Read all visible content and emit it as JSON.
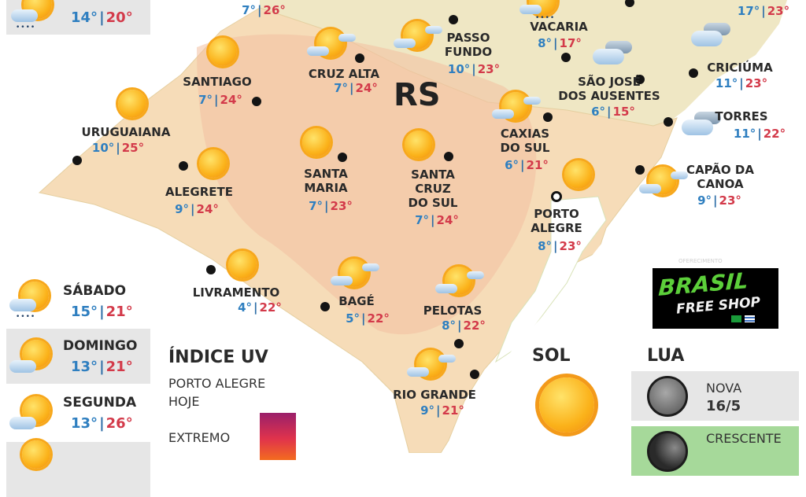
{
  "map": {
    "state_label": "RS",
    "colors": {
      "land": "#f6dcb8",
      "hot": "#f3c0a0",
      "warm": "#f8e3b0",
      "neighbor": "#efe7c4",
      "min_temp": "#2f7fc0",
      "max_temp": "#d33a4a"
    },
    "cities": [
      {
        "name": [
          "",
          ""
        ],
        "min": "7°",
        "max": "26°",
        "icon": "none"
      },
      {
        "name": [
          "SANTIAGO",
          ""
        ],
        "min": "7°",
        "max": "24°",
        "icon": "sun-icon"
      },
      {
        "name": [
          "CRUZ ALTA",
          ""
        ],
        "min": "7°",
        "max": "24°",
        "icon": "partly-cloudy-icon"
      },
      {
        "name": [
          "URUGUAIANA",
          ""
        ],
        "min": "10°",
        "max": "25°",
        "icon": "sun-icon"
      },
      {
        "name": [
          "ALEGRETE",
          ""
        ],
        "min": "9°",
        "max": "24°",
        "icon": "sun-icon"
      },
      {
        "name": [
          "SANTA",
          "MARIA"
        ],
        "min": "7°",
        "max": "23°",
        "icon": "sun-icon"
      },
      {
        "name": [
          "SANTA",
          "CRUZ",
          "DO SUL"
        ],
        "min": "7°",
        "max": "24°",
        "icon": "sun-icon"
      },
      {
        "name": [
          "PASSO",
          "FUNDO"
        ],
        "min": "10°",
        "max": "23°",
        "icon": "partly-cloudy-icon"
      },
      {
        "name": [
          "VACARIA",
          ""
        ],
        "min": "8°",
        "max": "17°",
        "icon": "rain-icon"
      },
      {
        "name": [
          "SÃO JOSÉ",
          "DOS AUSENTES"
        ],
        "min": "6°",
        "max": "15°",
        "icon": "cloudy-icon"
      },
      {
        "name": [
          "CAXIAS",
          "DO SUL"
        ],
        "min": "6°",
        "max": "21°",
        "icon": "partly-cloudy-icon"
      },
      {
        "name": [
          "",
          ""
        ],
        "min": "17°",
        "max": "23°",
        "icon": "none"
      },
      {
        "name": [
          "CRICIÚMA",
          ""
        ],
        "min": "11°",
        "max": "23°",
        "icon": "cloudy-icon"
      },
      {
        "name": [
          "TORRES",
          ""
        ],
        "min": "11°",
        "max": "22°",
        "icon": "cloudy-icon"
      },
      {
        "name": [
          "CAPÃO DA",
          "CANOA"
        ],
        "min": "9°",
        "max": "23°",
        "icon": "partly-cloudy-icon"
      },
      {
        "name": [
          "PORTO",
          "ALEGRE"
        ],
        "min": "8°",
        "max": "23°",
        "icon": "sun-icon"
      },
      {
        "name": [
          "LIVRAMENTO",
          ""
        ],
        "min": "4°",
        "max": "22°",
        "icon": "sun-icon"
      },
      {
        "name": [
          "BAGÉ",
          ""
        ],
        "min": "5°",
        "max": "22°",
        "icon": "partly-cloudy-icon"
      },
      {
        "name": [
          "PELOTAS",
          ""
        ],
        "min": "8°",
        "max": "22°",
        "icon": "partly-cloudy-icon"
      },
      {
        "name": [
          "RIO GRANDE",
          ""
        ],
        "min": "9°",
        "max": "21°",
        "icon": "partly-cloudy-icon"
      }
    ]
  },
  "forecast": [
    {
      "min": "14°",
      "max": "20°",
      "icon": "rain-icon"
    },
    {
      "day": "SÁBADO",
      "min": "15°",
      "max": "21°",
      "icon": "rain-icon"
    },
    {
      "day": "DOMINGO",
      "min": "13°",
      "max": "21°",
      "icon": "partly-cloudy-icon"
    },
    {
      "day": "SEGUNDA",
      "min": "13°",
      "max": "26°",
      "icon": "partly-cloudy-icon"
    }
  ],
  "uv": {
    "title": "ÍNDICE UV",
    "location": "PORTO ALEGRE",
    "when": "HOJE",
    "level": "EXTREMO"
  },
  "sun": {
    "title": "SOL"
  },
  "moon": {
    "title": "LUA",
    "phases": [
      {
        "name": "NOVA",
        "date": "16/5"
      },
      {
        "name": "CRESCENTE"
      }
    ]
  },
  "ad": {
    "caption": "OFERECIMENTO",
    "brand_line1": "BRASIL",
    "brand_line2": "FREE SHOP"
  }
}
